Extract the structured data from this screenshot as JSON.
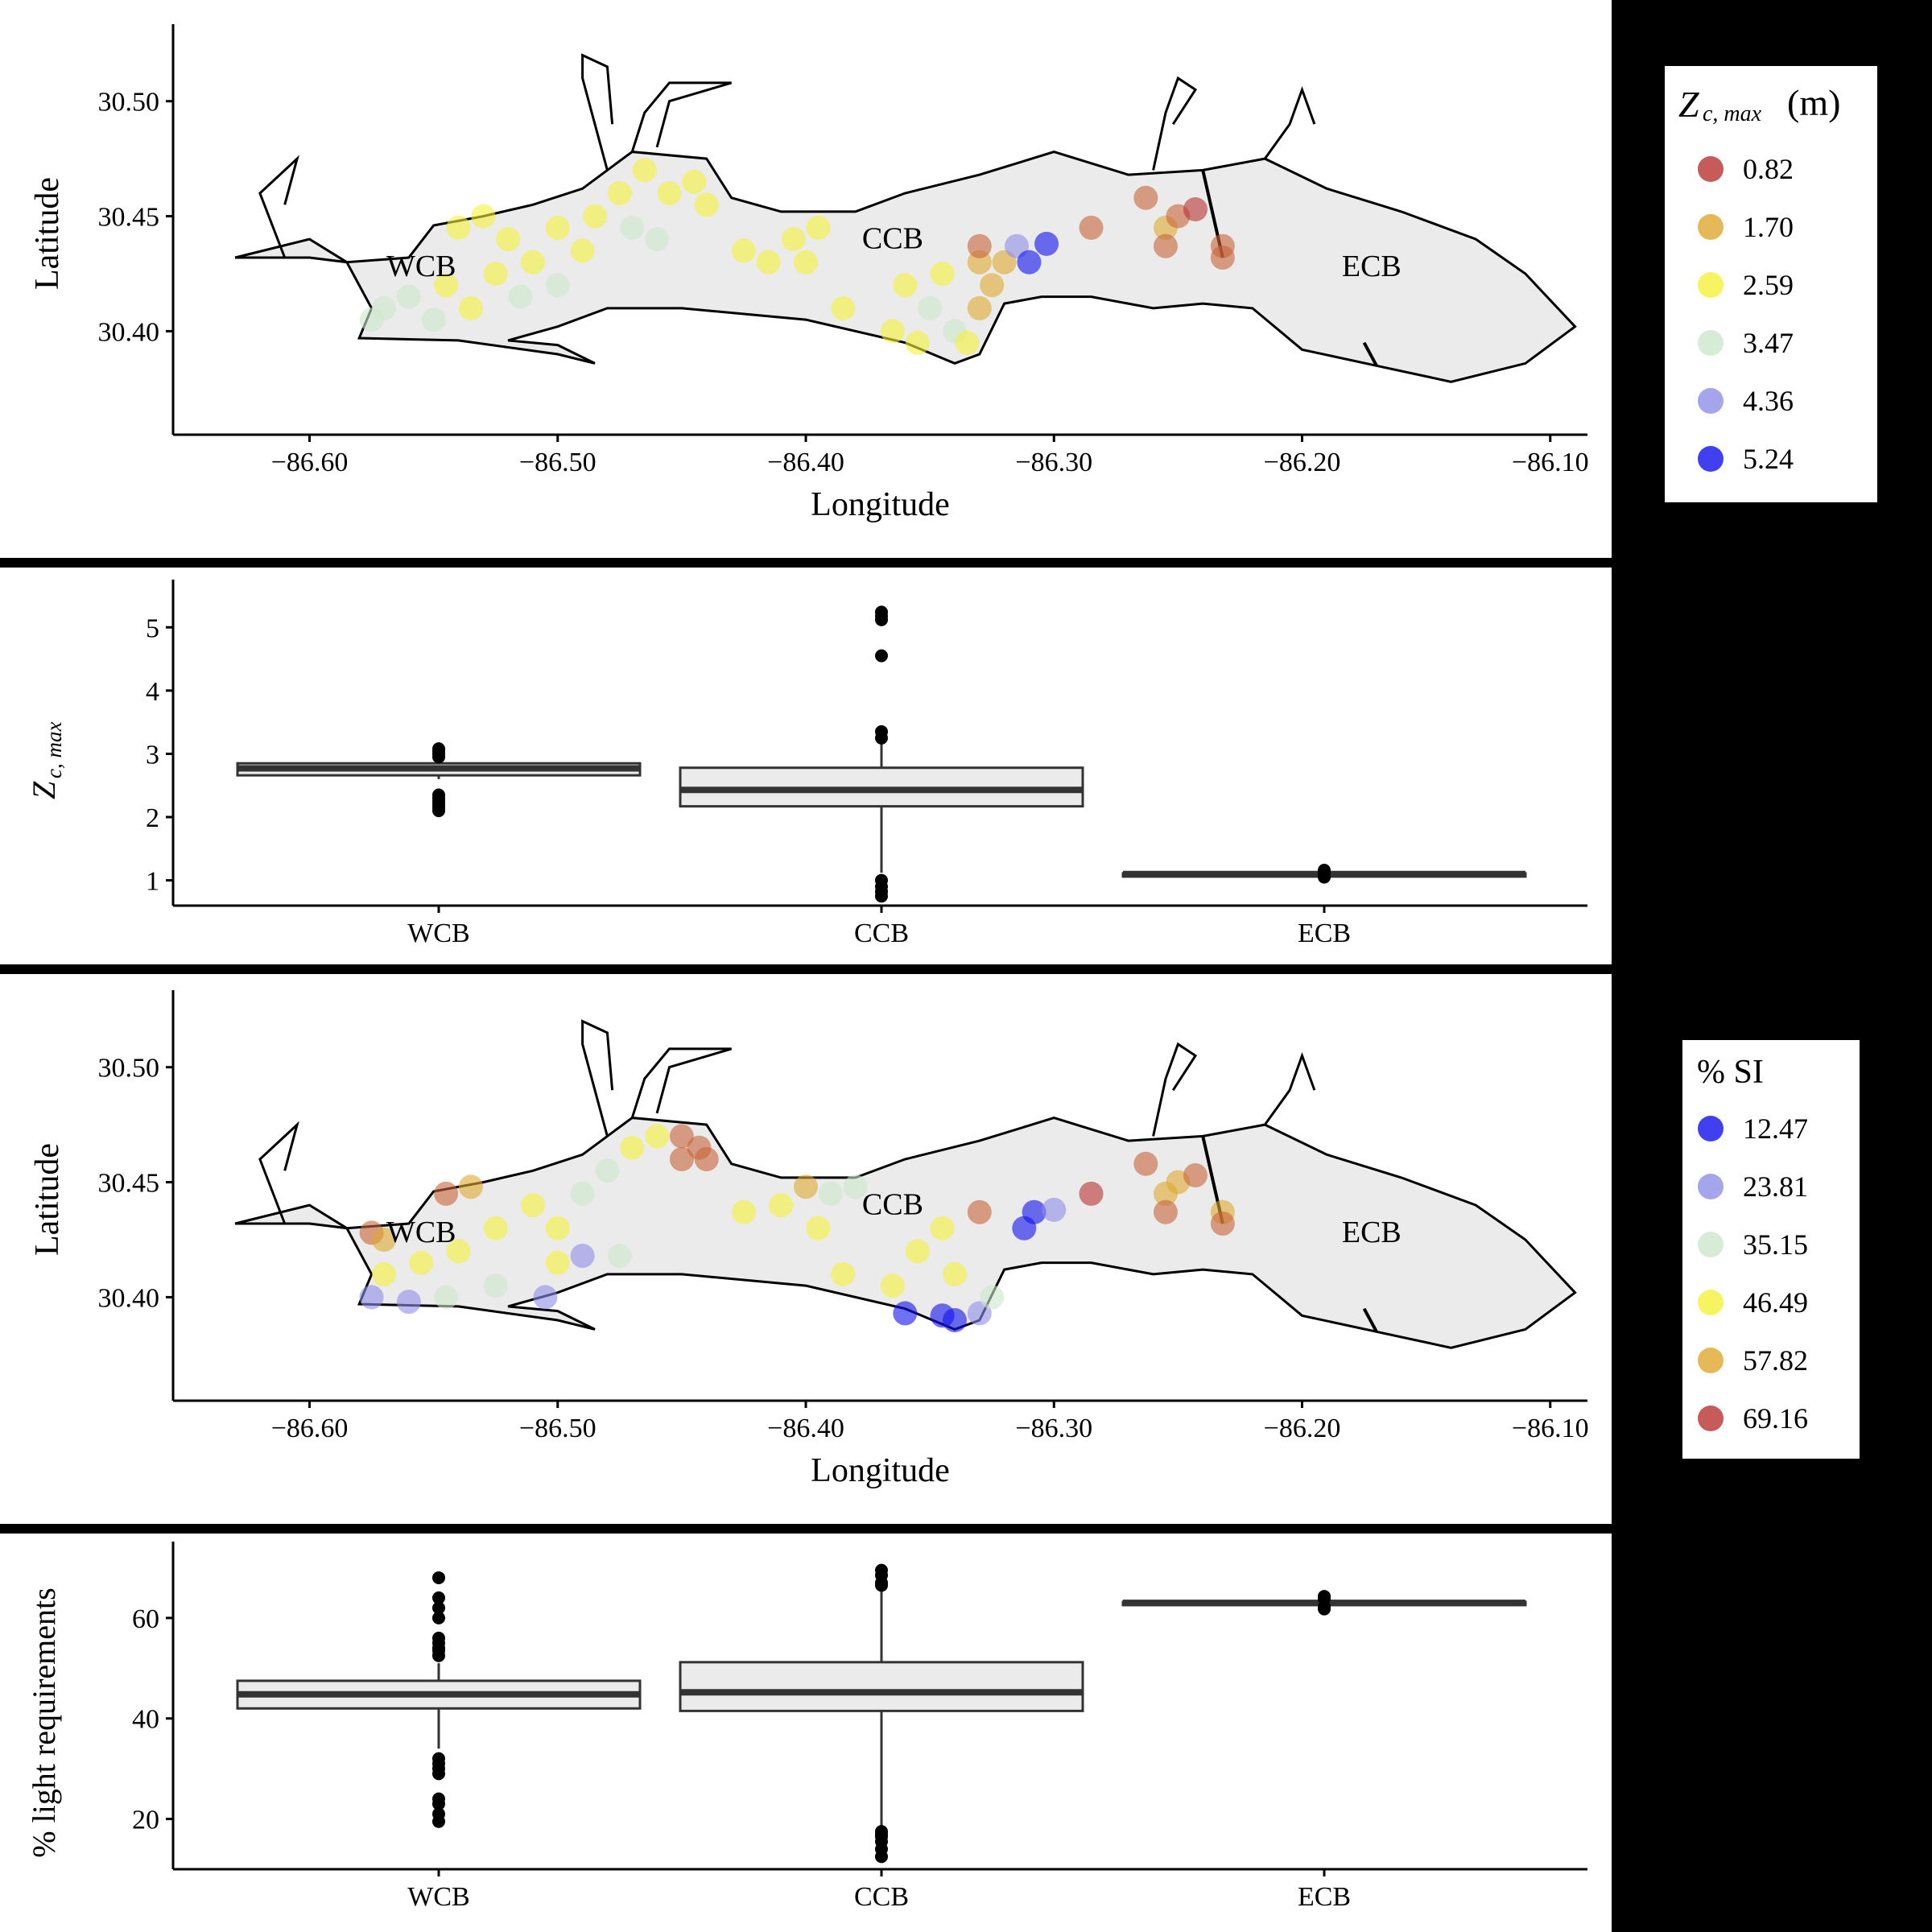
{
  "chart_data": [
    {
      "type": "scatter",
      "xlabel": "Longitude",
      "ylabel": "Latitude",
      "xticks": [
        "-86.60",
        "-86.50",
        "-86.40",
        "-86.30",
        "-86.20",
        "-86.10"
      ],
      "yticks": [
        "30.40",
        "30.45",
        "30.50"
      ],
      "xlim": [
        -86.655,
        -86.085
      ],
      "ylim": [
        30.355,
        30.53
      ],
      "region_labels": [
        {
          "text": "WCB",
          "lon": -86.555,
          "lat": 30.424
        },
        {
          "text": "CCB",
          "lon": -86.365,
          "lat": 30.436
        },
        {
          "text": "ECB",
          "lon": -86.172,
          "lat": 30.424
        }
      ],
      "legend": {
        "title_symbol": "Z",
        "title_sub": "c, max",
        "title_unit": "(m)",
        "placement": "right",
        "entries": [
          {
            "label": "0.82",
            "color": "#b83230"
          },
          {
            "label": "1.70",
            "color": "#e0a82e"
          },
          {
            "label": "2.59",
            "color": "#f4f239"
          },
          {
            "label": "3.47",
            "color": "#cde7cc"
          },
          {
            "label": "4.36",
            "color": "#8e8ee8"
          },
          {
            "label": "5.24",
            "color": "#1010ee"
          }
        ]
      },
      "points": [
        {
          "lon": -86.57,
          "lat": 30.41,
          "color": "#cde7cc"
        },
        {
          "lon": -86.56,
          "lat": 30.415,
          "color": "#cde7cc"
        },
        {
          "lon": -86.575,
          "lat": 30.405,
          "color": "#cde7cc"
        },
        {
          "lon": -86.55,
          "lat": 30.405,
          "color": "#cde7cc"
        },
        {
          "lon": -86.545,
          "lat": 30.42,
          "color": "#f4f239"
        },
        {
          "lon": -86.535,
          "lat": 30.41,
          "color": "#f4f239"
        },
        {
          "lon": -86.525,
          "lat": 30.425,
          "color": "#f4f239"
        },
        {
          "lon": -86.52,
          "lat": 30.44,
          "color": "#f4f239"
        },
        {
          "lon": -86.51,
          "lat": 30.43,
          "color": "#f4f239"
        },
        {
          "lon": -86.5,
          "lat": 30.445,
          "color": "#f4f239"
        },
        {
          "lon": -86.49,
          "lat": 30.435,
          "color": "#f4f239"
        },
        {
          "lon": -86.485,
          "lat": 30.45,
          "color": "#f4f239"
        },
        {
          "lon": -86.475,
          "lat": 30.46,
          "color": "#f4f239"
        },
        {
          "lon": -86.465,
          "lat": 30.47,
          "color": "#f4f239"
        },
        {
          "lon": -86.455,
          "lat": 30.46,
          "color": "#f4f239"
        },
        {
          "lon": -86.445,
          "lat": 30.465,
          "color": "#f4f239"
        },
        {
          "lon": -86.44,
          "lat": 30.455,
          "color": "#f4f239"
        },
        {
          "lon": -86.47,
          "lat": 30.445,
          "color": "#cde7cc"
        },
        {
          "lon": -86.46,
          "lat": 30.44,
          "color": "#cde7cc"
        },
        {
          "lon": -86.54,
          "lat": 30.445,
          "color": "#f4f239"
        },
        {
          "lon": -86.53,
          "lat": 30.45,
          "color": "#f4f239"
        },
        {
          "lon": -86.5,
          "lat": 30.42,
          "color": "#cde7cc"
        },
        {
          "lon": -86.515,
          "lat": 30.415,
          "color": "#cde7cc"
        },
        {
          "lon": -86.425,
          "lat": 30.435,
          "color": "#f4f239"
        },
        {
          "lon": -86.415,
          "lat": 30.43,
          "color": "#f4f239"
        },
        {
          "lon": -86.405,
          "lat": 30.44,
          "color": "#f4f239"
        },
        {
          "lon": -86.4,
          "lat": 30.43,
          "color": "#f4f239"
        },
        {
          "lon": -86.395,
          "lat": 30.445,
          "color": "#f4f239"
        },
        {
          "lon": -86.385,
          "lat": 30.41,
          "color": "#f4f239"
        },
        {
          "lon": -86.365,
          "lat": 30.4,
          "color": "#f4f239"
        },
        {
          "lon": -86.355,
          "lat": 30.395,
          "color": "#f4f239"
        },
        {
          "lon": -86.36,
          "lat": 30.42,
          "color": "#f4f239"
        },
        {
          "lon": -86.35,
          "lat": 30.41,
          "color": "#cde7cc"
        },
        {
          "lon": -86.34,
          "lat": 30.4,
          "color": "#cde7cc"
        },
        {
          "lon": -86.345,
          "lat": 30.425,
          "color": "#f4f239"
        },
        {
          "lon": -86.335,
          "lat": 30.395,
          "color": "#f4f239"
        },
        {
          "lon": -86.33,
          "lat": 30.43,
          "color": "#e0a82e"
        },
        {
          "lon": -86.325,
          "lat": 30.42,
          "color": "#e0a82e"
        },
        {
          "lon": -86.33,
          "lat": 30.41,
          "color": "#e0a82e"
        },
        {
          "lon": -86.32,
          "lat": 30.43,
          "color": "#e0a82e"
        },
        {
          "lon": -86.33,
          "lat": 30.437,
          "color": "#c8643a"
        },
        {
          "lon": -86.315,
          "lat": 30.437,
          "color": "#8e8ee8"
        },
        {
          "lon": -86.31,
          "lat": 30.43,
          "color": "#1010ee"
        },
        {
          "lon": -86.303,
          "lat": 30.438,
          "color": "#1010ee"
        },
        {
          "lon": -86.285,
          "lat": 30.445,
          "color": "#c8643a"
        },
        {
          "lon": -86.263,
          "lat": 30.458,
          "color": "#c8643a"
        },
        {
          "lon": -86.255,
          "lat": 30.445,
          "color": "#e0a82e"
        },
        {
          "lon": -86.255,
          "lat": 30.437,
          "color": "#c8643a"
        },
        {
          "lon": -86.25,
          "lat": 30.45,
          "color": "#c8643a"
        },
        {
          "lon": -86.243,
          "lat": 30.453,
          "color": "#b83230"
        },
        {
          "lon": -86.232,
          "lat": 30.437,
          "color": "#c8643a"
        },
        {
          "lon": -86.232,
          "lat": 30.432,
          "color": "#c8643a"
        }
      ]
    },
    {
      "type": "box",
      "ylabel_symbol": "Z",
      "ylabel_sub": "c, max",
      "categories": [
        "WCB",
        "CCB",
        "ECB"
      ],
      "yticks": [
        "1",
        "2",
        "3",
        "4",
        "5"
      ],
      "ylim": [
        0.6,
        5.5
      ],
      "boxes": [
        {
          "q1": 2.66,
          "median": 2.77,
          "q3": 2.85,
          "whisker_low": 2.6,
          "whisker_high": 2.9,
          "outliers": [
            2.1,
            2.15,
            2.2,
            2.25,
            2.3,
            2.35,
            2.95,
            3.0,
            3.05,
            3.08
          ]
        },
        {
          "q1": 2.17,
          "median": 2.43,
          "q3": 2.78,
          "whisker_low": 1.12,
          "whisker_high": 3.2,
          "outliers": [
            0.75,
            0.82,
            0.9,
            1.0,
            3.25,
            3.35,
            4.55,
            5.12,
            5.18,
            5.24
          ]
        },
        {
          "q1": 1.09,
          "median": 1.1,
          "q3": 1.11,
          "whisker_low": 1.09,
          "whisker_high": 1.11,
          "outliers": [
            1.05,
            1.08,
            1.13,
            1.16
          ]
        }
      ]
    },
    {
      "type": "scatter",
      "xlabel": "Longitude",
      "ylabel": "Latitude",
      "xticks": [
        "-86.60",
        "-86.50",
        "-86.40",
        "-86.30",
        "-86.20",
        "-86.10"
      ],
      "yticks": [
        "30.40",
        "30.45",
        "30.50"
      ],
      "xlim": [
        -86.655,
        -86.085
      ],
      "ylim": [
        30.355,
        30.53
      ],
      "region_labels": [
        {
          "text": "WCB",
          "lon": -86.555,
          "lat": 30.424
        },
        {
          "text": "CCB",
          "lon": -86.365,
          "lat": 30.436
        },
        {
          "text": "ECB",
          "lon": -86.172,
          "lat": 30.424
        }
      ],
      "legend": {
        "title": "% SI",
        "placement": "right",
        "entries": [
          {
            "label": "12.47",
            "color": "#1010ee"
          },
          {
            "label": "23.81",
            "color": "#8e8ee8"
          },
          {
            "label": "35.15",
            "color": "#cde7cc"
          },
          {
            "label": "46.49",
            "color": "#f4f239"
          },
          {
            "label": "57.82",
            "color": "#e0a82e"
          },
          {
            "label": "69.16",
            "color": "#b83230"
          }
        ]
      },
      "points": [
        {
          "lon": -86.575,
          "lat": 30.428,
          "color": "#c8643a"
        },
        {
          "lon": -86.57,
          "lat": 30.425,
          "color": "#e0a82e"
        },
        {
          "lon": -86.545,
          "lat": 30.445,
          "color": "#c8643a"
        },
        {
          "lon": -86.535,
          "lat": 30.448,
          "color": "#e0a82e"
        },
        {
          "lon": -86.57,
          "lat": 30.41,
          "color": "#f4f239"
        },
        {
          "lon": -86.555,
          "lat": 30.415,
          "color": "#f4f239"
        },
        {
          "lon": -86.54,
          "lat": 30.42,
          "color": "#f4f239"
        },
        {
          "lon": -86.525,
          "lat": 30.43,
          "color": "#f4f239"
        },
        {
          "lon": -86.51,
          "lat": 30.44,
          "color": "#f4f239"
        },
        {
          "lon": -86.5,
          "lat": 30.43,
          "color": "#f4f239"
        },
        {
          "lon": -86.49,
          "lat": 30.445,
          "color": "#cde7cc"
        },
        {
          "lon": -86.48,
          "lat": 30.455,
          "color": "#cde7cc"
        },
        {
          "lon": -86.47,
          "lat": 30.465,
          "color": "#f4f239"
        },
        {
          "lon": -86.46,
          "lat": 30.47,
          "color": "#f4f239"
        },
        {
          "lon": -86.45,
          "lat": 30.47,
          "color": "#c8643a"
        },
        {
          "lon": -86.443,
          "lat": 30.465,
          "color": "#c8643a"
        },
        {
          "lon": -86.45,
          "lat": 30.46,
          "color": "#c8643a"
        },
        {
          "lon": -86.44,
          "lat": 30.46,
          "color": "#c8643a"
        },
        {
          "lon": -86.575,
          "lat": 30.4,
          "color": "#8e8ee8"
        },
        {
          "lon": -86.56,
          "lat": 30.398,
          "color": "#8e8ee8"
        },
        {
          "lon": -86.545,
          "lat": 30.4,
          "color": "#cde7cc"
        },
        {
          "lon": -86.525,
          "lat": 30.405,
          "color": "#cde7cc"
        },
        {
          "lon": -86.505,
          "lat": 30.4,
          "color": "#8e8ee8"
        },
        {
          "lon": -86.49,
          "lat": 30.418,
          "color": "#8e8ee8"
        },
        {
          "lon": -86.475,
          "lat": 30.418,
          "color": "#cde7cc"
        },
        {
          "lon": -86.5,
          "lat": 30.415,
          "color": "#f4f239"
        },
        {
          "lon": -86.425,
          "lat": 30.437,
          "color": "#f4f239"
        },
        {
          "lon": -86.41,
          "lat": 30.44,
          "color": "#f4f239"
        },
        {
          "lon": -86.4,
          "lat": 30.448,
          "color": "#e0a82e"
        },
        {
          "lon": -86.39,
          "lat": 30.445,
          "color": "#cde7cc"
        },
        {
          "lon": -86.38,
          "lat": 30.448,
          "color": "#cde7cc"
        },
        {
          "lon": -86.395,
          "lat": 30.43,
          "color": "#f4f239"
        },
        {
          "lon": -86.385,
          "lat": 30.41,
          "color": "#f4f239"
        },
        {
          "lon": -86.365,
          "lat": 30.405,
          "color": "#f4f239"
        },
        {
          "lon": -86.355,
          "lat": 30.42,
          "color": "#f4f239"
        },
        {
          "lon": -86.345,
          "lat": 30.43,
          "color": "#f4f239"
        },
        {
          "lon": -86.34,
          "lat": 30.41,
          "color": "#f4f239"
        },
        {
          "lon": -86.36,
          "lat": 30.393,
          "color": "#1010ee"
        },
        {
          "lon": -86.345,
          "lat": 30.392,
          "color": "#1010ee"
        },
        {
          "lon": -86.34,
          "lat": 30.39,
          "color": "#1010ee"
        },
        {
          "lon": -86.33,
          "lat": 30.393,
          "color": "#8e8ee8"
        },
        {
          "lon": -86.325,
          "lat": 30.4,
          "color": "#cde7cc"
        },
        {
          "lon": -86.33,
          "lat": 30.437,
          "color": "#c8643a"
        },
        {
          "lon": -86.312,
          "lat": 30.43,
          "color": "#1010ee"
        },
        {
          "lon": -86.308,
          "lat": 30.437,
          "color": "#1010ee"
        },
        {
          "lon": -86.3,
          "lat": 30.438,
          "color": "#8e8ee8"
        },
        {
          "lon": -86.285,
          "lat": 30.445,
          "color": "#b83230"
        },
        {
          "lon": -86.263,
          "lat": 30.458,
          "color": "#c8643a"
        },
        {
          "lon": -86.255,
          "lat": 30.445,
          "color": "#e0a82e"
        },
        {
          "lon": -86.255,
          "lat": 30.437,
          "color": "#c8643a"
        },
        {
          "lon": -86.25,
          "lat": 30.45,
          "color": "#e0a82e"
        },
        {
          "lon": -86.243,
          "lat": 30.453,
          "color": "#c8643a"
        },
        {
          "lon": -86.232,
          "lat": 30.437,
          "color": "#e0a82e"
        },
        {
          "lon": -86.232,
          "lat": 30.432,
          "color": "#c8643a"
        }
      ]
    },
    {
      "type": "box",
      "ylabel": "% light requirements",
      "categories": [
        "WCB",
        "CCB",
        "ECB"
      ],
      "yticks": [
        "20",
        "40",
        "60"
      ],
      "ylim": [
        10,
        72
      ],
      "boxes": [
        {
          "q1": 42,
          "median": 44.8,
          "q3": 47.5,
          "whisker_low": 34,
          "whisker_high": 51,
          "outliers": [
            19.5,
            21,
            23,
            24,
            29,
            30,
            31,
            32,
            52.5,
            53.5,
            54,
            55,
            56,
            60,
            62,
            64,
            68
          ]
        },
        {
          "q1": 41.5,
          "median": 45.2,
          "q3": 51.2,
          "whisker_low": 18,
          "whisker_high": 66,
          "outliers": [
            12.5,
            14,
            15.5,
            16.5,
            17,
            17.5,
            66.5,
            67,
            68.5,
            69.5
          ]
        },
        {
          "q1": 62.8,
          "median": 63,
          "q3": 63.2,
          "whisker_low": 62.8,
          "whisker_high": 63.2,
          "outliers": [
            61.8,
            62.2,
            63.8,
            64.3
          ]
        }
      ]
    }
  ]
}
